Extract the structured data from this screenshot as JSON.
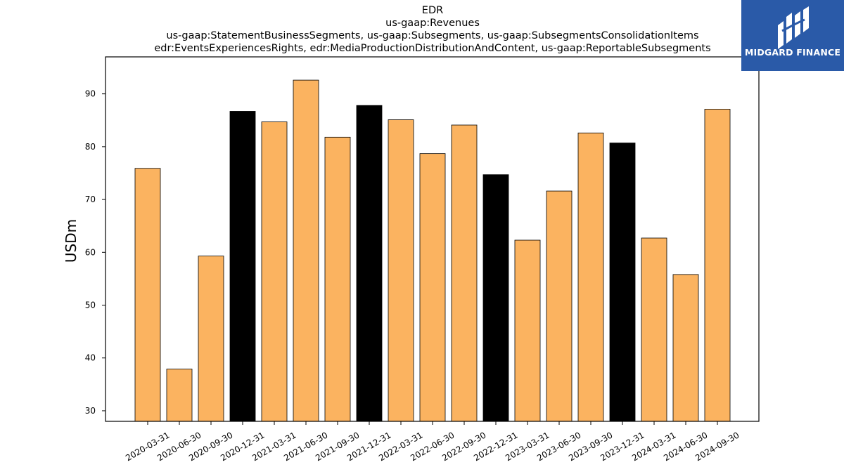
{
  "chart_data": {
    "type": "bar",
    "title_lines": [
      "EDR",
      "us-gaap:Revenues",
      "us-gaap:StatementBusinessSegments, us-gaap:Subsegments, us-gaap:SubsegmentsConsolidationItems",
      "edr:EventsExperiencesRights, edr:MediaProductionDistributionAndContent, us-gaap:ReportableSubsegments"
    ],
    "xlabel": "",
    "ylabel": "USDm",
    "ylim": [
      28,
      97
    ],
    "yticks": [
      30,
      40,
      50,
      60,
      70,
      80,
      90
    ],
    "categories": [
      "2020-03-31",
      "2020-06-30",
      "2020-09-30",
      "2020-12-31",
      "2021-03-31",
      "2021-06-30",
      "2021-09-30",
      "2021-12-31",
      "2022-03-31",
      "2022-06-30",
      "2022-09-30",
      "2022-12-31",
      "2023-03-31",
      "2023-06-30",
      "2023-09-30",
      "2023-12-31",
      "2024-03-31",
      "2024-06-30",
      "2024-09-30"
    ],
    "values": [
      75.9,
      37.9,
      59.3,
      86.7,
      84.7,
      92.6,
      81.8,
      87.8,
      85.1,
      78.7,
      84.1,
      74.7,
      62.3,
      71.6,
      82.6,
      80.7,
      62.7,
      55.8,
      87.1
    ],
    "bar_colors": [
      "#fbb360",
      "#fbb360",
      "#fbb360",
      "#000000",
      "#fbb360",
      "#fbb360",
      "#fbb360",
      "#000000",
      "#fbb360",
      "#fbb360",
      "#fbb360",
      "#000000",
      "#fbb360",
      "#fbb360",
      "#fbb360",
      "#000000",
      "#fbb360",
      "#fbb360",
      "#fbb360"
    ],
    "grid": false,
    "legend": "none"
  },
  "logo": {
    "text": "MIDGARD FINANCE",
    "icon": "midgard-logo-icon",
    "background": "#2a5aa8"
  }
}
